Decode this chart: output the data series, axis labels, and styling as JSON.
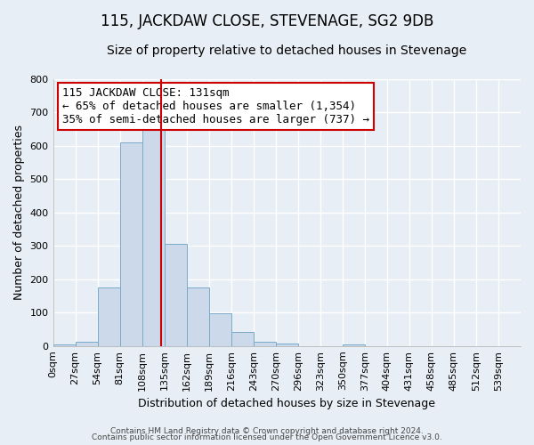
{
  "title": "115, JACKDAW CLOSE, STEVENAGE, SG2 9DB",
  "subtitle": "Size of property relative to detached houses in Stevenage",
  "xlabel": "Distribution of detached houses by size in Stevenage",
  "ylabel": "Number of detached properties",
  "bin_labels": [
    "0sqm",
    "27sqm",
    "54sqm",
    "81sqm",
    "108sqm",
    "135sqm",
    "162sqm",
    "189sqm",
    "216sqm",
    "243sqm",
    "270sqm",
    "296sqm",
    "323sqm",
    "350sqm",
    "377sqm",
    "404sqm",
    "431sqm",
    "458sqm",
    "485sqm",
    "512sqm",
    "539sqm"
  ],
  "bar_values": [
    5,
    12,
    175,
    610,
    650,
    305,
    175,
    97,
    42,
    13,
    8,
    0,
    0,
    5,
    0,
    0,
    0,
    0,
    0,
    0,
    0
  ],
  "bar_color": "#ccd9ea",
  "bar_edge_color": "#7aaac8",
  "bin_width": 27,
  "property_size": 131,
  "vline_color": "#cc0000",
  "annotation_line1": "115 JACKDAW CLOSE: 131sqm",
  "annotation_line2": "← 65% of detached houses are smaller (1,354)",
  "annotation_line3": "35% of semi-detached houses are larger (737) →",
  "annotation_box_color": "#ffffff",
  "annotation_box_edge": "#cc0000",
  "ylim": [
    0,
    800
  ],
  "yticks": [
    0,
    100,
    200,
    300,
    400,
    500,
    600,
    700,
    800
  ],
  "footer_line1": "Contains HM Land Registry data © Crown copyright and database right 2024.",
  "footer_line2": "Contains public sector information licensed under the Open Government Licence v3.0.",
  "background_color": "#e8eef5",
  "plot_bg_color": "#e8eef5",
  "grid_color": "#ffffff",
  "title_fontsize": 12,
  "subtitle_fontsize": 10,
  "axis_label_fontsize": 9,
  "tick_fontsize": 8,
  "annotation_fontsize": 9
}
